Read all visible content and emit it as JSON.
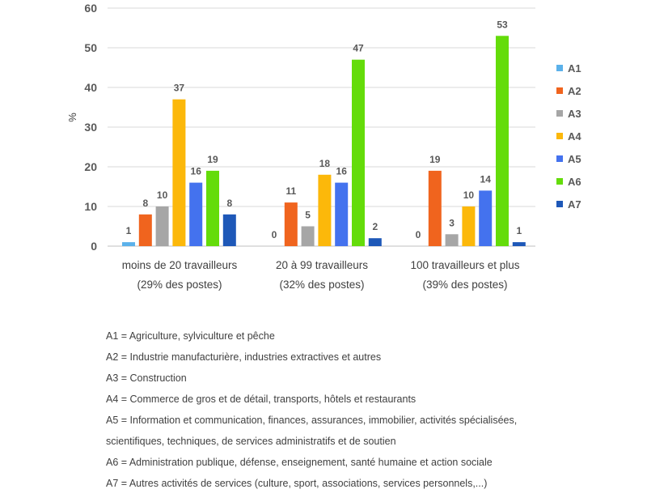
{
  "chart_data": {
    "type": "bar",
    "ylabel": "%",
    "ylim": [
      0,
      60
    ],
    "yticks": [
      0,
      10,
      20,
      30,
      40,
      50,
      60
    ],
    "grid": true,
    "legend_position": "right",
    "categories": [
      [
        "moins de 20 travailleurs",
        "(29% des postes)"
      ],
      [
        "20 à 99 travailleurs",
        "(32% des postes)"
      ],
      [
        "100 travailleurs et plus",
        "(39% des postes)"
      ]
    ],
    "series": [
      {
        "name": "A1",
        "color": "#5bb1ea",
        "values": [
          1,
          0,
          0
        ]
      },
      {
        "name": "A2",
        "color": "#f0641e",
        "values": [
          8,
          11,
          19
        ]
      },
      {
        "name": "A3",
        "color": "#a6a6a6",
        "values": [
          10,
          5,
          3
        ]
      },
      {
        "name": "A4",
        "color": "#fcb80a",
        "values": [
          37,
          18,
          10
        ]
      },
      {
        "name": "A5",
        "color": "#4472ee",
        "values": [
          16,
          16,
          14
        ]
      },
      {
        "name": "A6",
        "color": "#64dc0a",
        "values": [
          19,
          47,
          53
        ]
      },
      {
        "name": "A7",
        "color": "#1e58b8",
        "values": [
          8,
          2,
          1
        ]
      }
    ]
  },
  "notes": [
    "A1 = Agriculture, sylviculture et pêche",
    "A2 = Industrie manufacturière, industries extractives et autres",
    "A3 = Construction",
    "A4 = Commerce de gros et de détail, transports, hôtels et restaurants",
    "A5 = Information et communication, finances, assurances, immobilier, activités spécialisées,",
    "scientifiques, techniques, de services administratifs et de soutien",
    "A6 = Administration publique, défense, enseignement, santé humaine et action sociale",
    "A7 = Autres activités de services (culture, sport, associations, services personnels,...)"
  ]
}
